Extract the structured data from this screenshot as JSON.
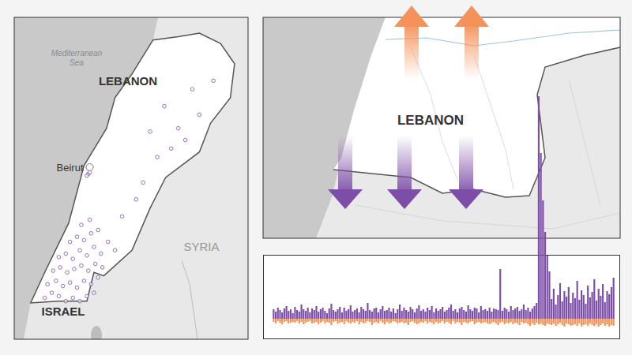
{
  "left_map": {
    "labels": {
      "sea": "Mediterranean Sea",
      "country": "LEBANON",
      "city": "Beirut",
      "east": "SYRIA",
      "south": "ISRAEL"
    },
    "strikes": [
      [
        35.2,
        33.12
      ],
      [
        35.25,
        33.15
      ],
      [
        35.3,
        33.13
      ],
      [
        35.35,
        33.1
      ],
      [
        35.4,
        33.12
      ],
      [
        35.45,
        33.1
      ],
      [
        35.5,
        33.13
      ],
      [
        35.55,
        33.15
      ],
      [
        35.22,
        33.2
      ],
      [
        35.28,
        33.22
      ],
      [
        35.33,
        33.19
      ],
      [
        35.38,
        33.21
      ],
      [
        35.43,
        33.18
      ],
      [
        35.48,
        33.22
      ],
      [
        35.53,
        33.2
      ],
      [
        35.58,
        33.24
      ],
      [
        35.26,
        33.28
      ],
      [
        35.31,
        33.3
      ],
      [
        35.36,
        33.27
      ],
      [
        35.41,
        33.29
      ],
      [
        35.46,
        33.31
      ],
      [
        35.51,
        33.28
      ],
      [
        35.56,
        33.32
      ],
      [
        35.61,
        33.3
      ],
      [
        35.3,
        33.36
      ],
      [
        35.35,
        33.38
      ],
      [
        35.4,
        33.35
      ],
      [
        35.45,
        33.4
      ],
      [
        35.5,
        33.37
      ],
      [
        35.55,
        33.42
      ],
      [
        35.6,
        33.38
      ],
      [
        35.38,
        33.45
      ],
      [
        35.43,
        33.48
      ],
      [
        35.48,
        33.46
      ],
      [
        35.53,
        33.5
      ],
      [
        35.46,
        33.55
      ],
      [
        35.52,
        33.58
      ],
      [
        35.58,
        33.52
      ],
      [
        35.65,
        33.45
      ],
      [
        35.7,
        33.4
      ],
      [
        35.51,
        33.85
      ],
      [
        35.52,
        33.86
      ],
      [
        35.5,
        33.84
      ],
      [
        35.9,
        33.8
      ],
      [
        36.0,
        33.95
      ],
      [
        36.1,
        34.0
      ],
      [
        36.2,
        34.05
      ],
      [
        36.15,
        34.12
      ],
      [
        36.3,
        34.2
      ],
      [
        35.95,
        34.1
      ],
      [
        36.05,
        34.25
      ],
      [
        35.85,
        33.7
      ],
      [
        35.75,
        33.6
      ],
      [
        36.25,
        34.35
      ],
      [
        36.4,
        34.4
      ]
    ]
  },
  "right_map": {
    "label": "LEBANON"
  },
  "chart_data": {
    "type": "bar",
    "stacked": true,
    "grid": false,
    "tick_labels": false,
    "ylim": [
      -26,
      284
    ],
    "categories": [
      null,
      null,
      null,
      null,
      null,
      null,
      null,
      null,
      null,
      null,
      null,
      null,
      null,
      null,
      null,
      null,
      null,
      null,
      null,
      null,
      null,
      null,
      null,
      null,
      null,
      null,
      null,
      null,
      null,
      null,
      null,
      null,
      null,
      null,
      null,
      null,
      null,
      null,
      null,
      null,
      null,
      null,
      null,
      null,
      null,
      null,
      null,
      null,
      null,
      null,
      null,
      null,
      null,
      null,
      null,
      null,
      null,
      null,
      null,
      null,
      null,
      null,
      null,
      null,
      null,
      null,
      null,
      null,
      null,
      null,
      null,
      null,
      null,
      null,
      null,
      null,
      null,
      null,
      null,
      null,
      null,
      null,
      null,
      null,
      null,
      null,
      null,
      null,
      null,
      null,
      null,
      null,
      null,
      null,
      null,
      null,
      null,
      null,
      null,
      null,
      null,
      null,
      null,
      null,
      null,
      null,
      null,
      null,
      null,
      null,
      null,
      null,
      null,
      null,
      null,
      null,
      null,
      null,
      null,
      null,
      null,
      null,
      null,
      null,
      null,
      null,
      null,
      null,
      null,
      null,
      null,
      null,
      null,
      null,
      null,
      null,
      null,
      null,
      null,
      null,
      null,
      null,
      null,
      null,
      null,
      null,
      null,
      null,
      null,
      null,
      null,
      null,
      null,
      null,
      null,
      null,
      null,
      null,
      null,
      null
    ],
    "series": [
      {
        "color": "#7d4ea8",
        "values": [
          12,
          9,
          14,
          11,
          8,
          13,
          16,
          10,
          12,
          7,
          15,
          11,
          9,
          18,
          12,
          10,
          14,
          8,
          13,
          11,
          16,
          9,
          12,
          14,
          10,
          7,
          13,
          19,
          11,
          9,
          12,
          15,
          8,
          14,
          10,
          12,
          17,
          9,
          11,
          13,
          8,
          15,
          12,
          10,
          20,
          11,
          9,
          13,
          14,
          8,
          12,
          16,
          10,
          11,
          14,
          9,
          13,
          7,
          12,
          18,
          10,
          14,
          11,
          9,
          15,
          12,
          8,
          13,
          17,
          10,
          12,
          9,
          14,
          11,
          16,
          8,
          13,
          10,
          12,
          15,
          9,
          11,
          14,
          18,
          10,
          12,
          8,
          13,
          15,
          11,
          9,
          17,
          12,
          10,
          14,
          13,
          8,
          16,
          11,
          12,
          10,
          14,
          9,
          13,
          12,
          11,
          63,
          10,
          14,
          12,
          9,
          16,
          11,
          13,
          15,
          10,
          12,
          18,
          11,
          14,
          9,
          13,
          16,
          20,
          282,
          210,
          150,
          110,
          80,
          60,
          25,
          38,
          18,
          30,
          45,
          22,
          35,
          28,
          40,
          20,
          33,
          26,
          48,
          24,
          36,
          30,
          19,
          42,
          27,
          34,
          50,
          23,
          38,
          29,
          44,
          21,
          35,
          31,
          40,
          52
        ]
      },
      {
        "color": "#f4925a",
        "values": [
          -4,
          -6,
          -3,
          -5,
          -7,
          -4,
          -3,
          -6,
          -5,
          -4,
          -5,
          -3,
          -6,
          -4,
          -7,
          -5,
          -4,
          -3,
          -6,
          -5,
          -4,
          -7,
          -5,
          -3,
          -6,
          -4,
          -5,
          -8,
          -4,
          -3,
          -6,
          -5,
          -4,
          -7,
          -3,
          -5,
          -6,
          -4,
          -5,
          -3,
          -7,
          -4,
          -6,
          -5,
          -3,
          -4,
          -8,
          -5,
          -4,
          -6,
          -3,
          -5,
          -7,
          -4,
          -6,
          -5,
          -3,
          -4,
          -6,
          -5,
          -4,
          -6,
          -5,
          -8,
          -4,
          -3,
          -5,
          -7,
          -6,
          -4,
          -5,
          -3,
          -6,
          -4,
          -5,
          -7,
          -4,
          -6,
          -5,
          -3,
          -6,
          -4,
          -5,
          -7,
          -3,
          -6,
          -4,
          -5,
          -8,
          -4,
          -5,
          -6,
          -4,
          -3,
          -7,
          -5,
          -4,
          -6,
          -5,
          -4,
          -6,
          -7,
          -5,
          -4,
          -6,
          -8,
          -5,
          -4,
          -7,
          -5,
          -6,
          -4,
          -7,
          -5,
          -6,
          -8,
          -4,
          -6,
          -5,
          -7,
          -9,
          -6,
          -8,
          -5,
          -7,
          -6,
          -8,
          -9,
          -6,
          -7,
          -8,
          -6,
          -9,
          -7,
          -5,
          -8,
          -10,
          -6,
          -7,
          -9,
          -8,
          -7,
          -9,
          -6,
          -10,
          -8,
          -7,
          -9,
          -6,
          -8,
          -9,
          -7,
          -10,
          -8,
          -6,
          -9,
          -7,
          -10,
          -8,
          -9
        ]
      }
    ]
  }
}
